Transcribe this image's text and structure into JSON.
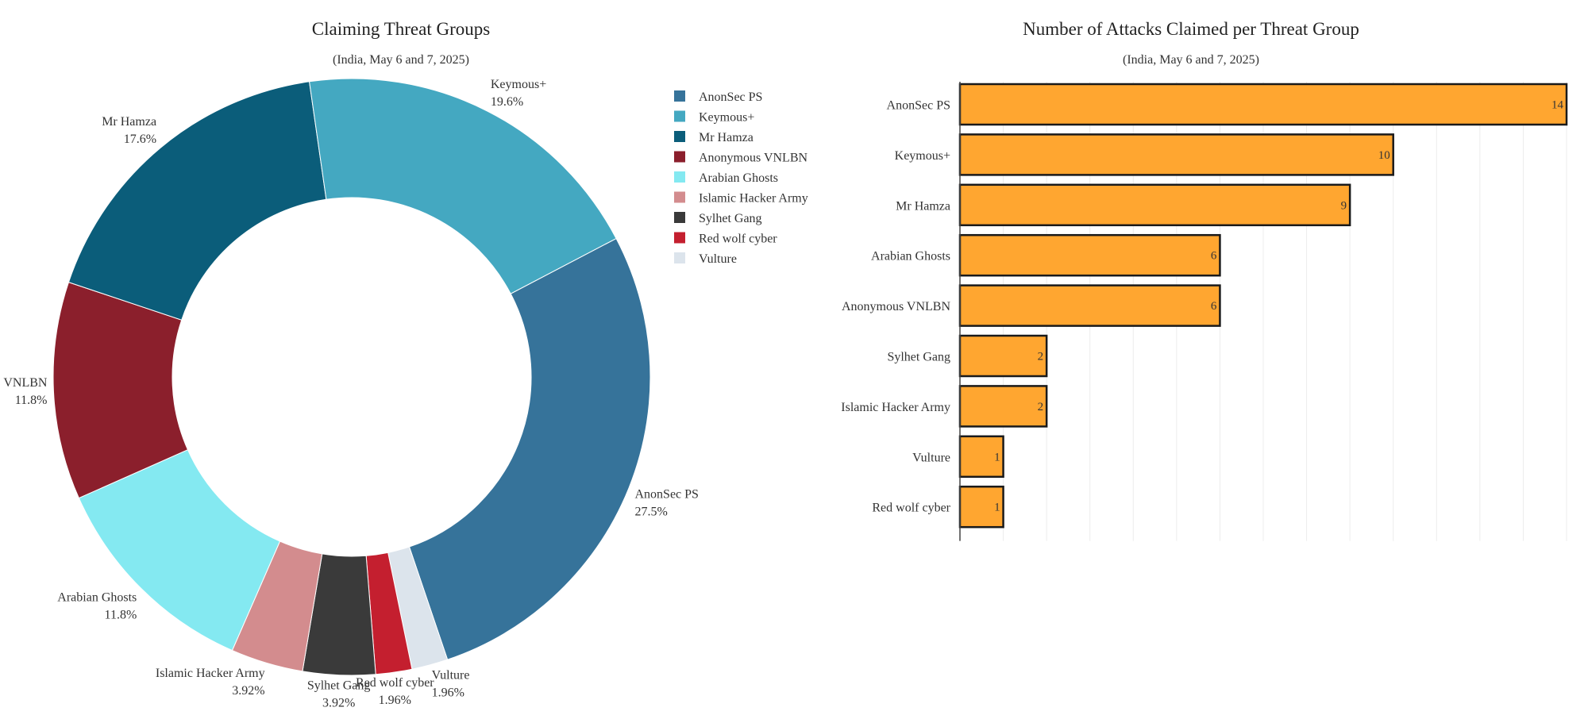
{
  "chart_data": [
    {
      "type": "pie",
      "title": "Claiming Threat Groups",
      "subtitle": "(India, May 6 and 7, 2025)",
      "hole": true,
      "legend_position": "right",
      "slices": [
        {
          "name": "AnonSec PS",
          "value": 27.5,
          "label": "27.5%",
          "color": "#36739a"
        },
        {
          "name": "Vulture",
          "value": 1.96,
          "label": "1.96%",
          "color": "#dce4ec"
        },
        {
          "name": "Red wolf cyber",
          "value": 1.96,
          "label": "1.96%",
          "color": "#c41f2f"
        },
        {
          "name": "Sylhet Gang",
          "value": 3.92,
          "label": "3.92%",
          "color": "#3a3a3a"
        },
        {
          "name": "Islamic Hacker Army",
          "value": 3.92,
          "label": "3.92%",
          "color": "#d38c8e"
        },
        {
          "name": "Arabian Ghosts",
          "value": 11.8,
          "label": "11.8%",
          "color": "#84e9f1"
        },
        {
          "name": "Anonymous VNLBN",
          "value": 11.8,
          "label": "11.8%",
          "color": "#8b1f2c"
        },
        {
          "name": "Mr Hamza",
          "value": 17.6,
          "label": "17.6%",
          "color": "#0b5d7a"
        },
        {
          "name": "Keymous+",
          "value": 19.6,
          "label": "19.6%",
          "color": "#44a8c1"
        }
      ],
      "legend": [
        "AnonSec PS",
        "Keymous+",
        "Mr Hamza",
        "Anonymous VNLBN",
        "Arabian Ghosts",
        "Islamic Hacker Army",
        "Sylhet Gang",
        "Red wolf cyber",
        "Vulture"
      ]
    },
    {
      "type": "bar",
      "orientation": "horizontal",
      "title": "Number of Attacks Claimed per Threat Group",
      "subtitle": "(India, May 6 and 7, 2025)",
      "categories": [
        "AnonSec PS",
        "Keymous+",
        "Mr Hamza",
        "Arabian Ghosts",
        "Anonymous VNLBN",
        "Sylhet Gang",
        "Islamic Hacker Army",
        "Vulture",
        "Red wolf cyber"
      ],
      "values": [
        14,
        10,
        9,
        6,
        6,
        2,
        2,
        1,
        1
      ],
      "xlim": [
        0,
        14
      ],
      "grid": true,
      "bar_color": "#ffa630",
      "bar_edge_color": "#1a1a1a"
    }
  ]
}
